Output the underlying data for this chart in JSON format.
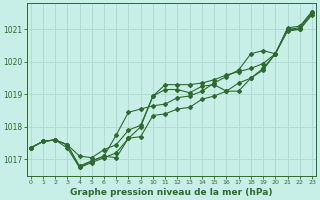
{
  "title": "Graphe pression niveau de la mer (hPa)",
  "background_color": "#c8eee8",
  "grid_color": "#b0d8d0",
  "line_color": "#2d6a2d",
  "xlim": [
    -0.3,
    23.3
  ],
  "ylim": [
    1016.5,
    1021.8
  ],
  "yticks": [
    1017,
    1018,
    1019,
    1020,
    1021
  ],
  "xticks": [
    0,
    1,
    2,
    3,
    4,
    5,
    6,
    7,
    8,
    9,
    10,
    11,
    12,
    13,
    14,
    15,
    16,
    17,
    18,
    19,
    20,
    21,
    22,
    23
  ],
  "series": [
    [
      1017.35,
      1017.55,
      1017.6,
      1017.45,
      1016.8,
      1016.95,
      1017.1,
      1017.75,
      1018.45,
      1018.55,
      1018.65,
      1018.7,
      1018.9,
      1018.95,
      1019.1,
      1019.35,
      1019.55,
      1019.75,
      1020.25,
      1020.35,
      1020.25,
      1021.05,
      1021.1,
      1021.55
    ],
    [
      1017.35,
      1017.55,
      1017.6,
      1017.35,
      1016.75,
      1016.95,
      1017.1,
      1017.05,
      1017.65,
      1017.7,
      1018.35,
      1018.4,
      1018.55,
      1018.6,
      1018.85,
      1018.95,
      1019.1,
      1019.35,
      1019.5,
      1019.75,
      1020.25,
      1020.95,
      1021.0,
      1021.5
    ],
    [
      1017.35,
      1017.55,
      1017.6,
      1017.45,
      1017.1,
      1017.05,
      1017.3,
      1017.45,
      1017.9,
      1018.05,
      1018.95,
      1019.3,
      1019.3,
      1019.3,
      1019.35,
      1019.45,
      1019.6,
      1019.7,
      1019.8,
      1019.95,
      1020.25,
      1021.0,
      1021.05,
      1021.55
    ],
    [
      1017.35,
      1017.55,
      1017.6,
      1017.45,
      1016.75,
      1016.9,
      1017.05,
      1017.2,
      1017.65,
      1018.0,
      1018.95,
      1019.15,
      1019.15,
      1019.05,
      1019.25,
      1019.3,
      1019.1,
      1019.1,
      1019.5,
      1019.8,
      1020.25,
      1021.0,
      1021.0,
      1021.45
    ]
  ]
}
